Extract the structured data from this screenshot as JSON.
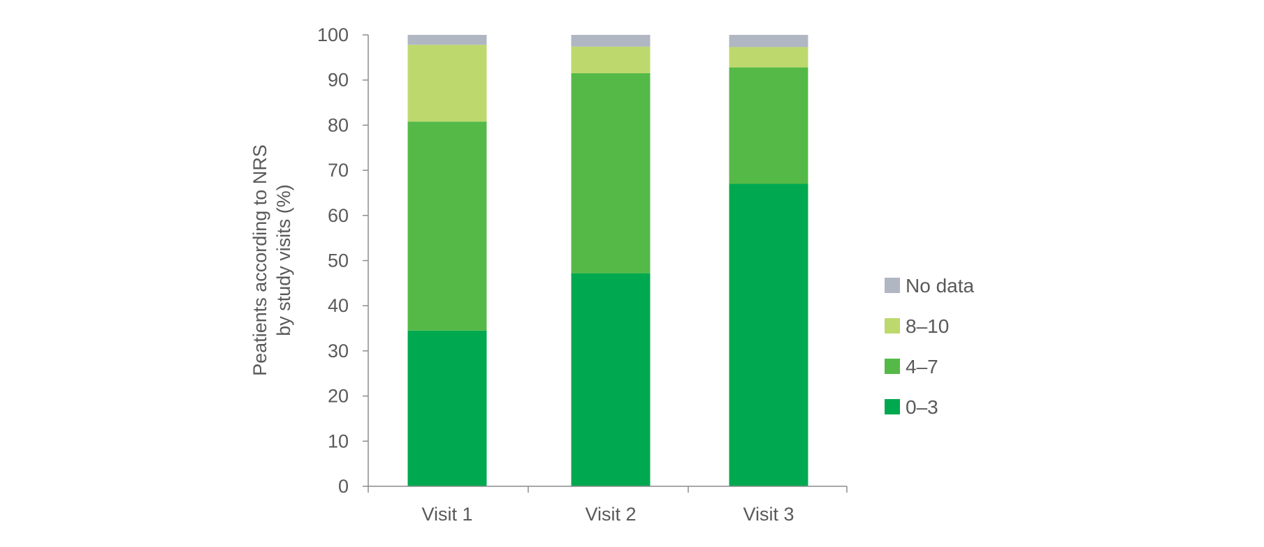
{
  "chart_data": {
    "type": "bar",
    "stacked": true,
    "title": "",
    "xlabel": "",
    "ylabel": "Peatients according to NRS by study visits (%)",
    "ylabel_lines": [
      "Peatients according to NRS",
      "by study visits (%)"
    ],
    "ylim": [
      0,
      100
    ],
    "yticks": [
      0,
      10,
      20,
      30,
      40,
      50,
      60,
      70,
      80,
      90,
      100
    ],
    "categories": [
      "Visit 1",
      "Visit 2",
      "Visit 3"
    ],
    "series": [
      {
        "name": "0–3",
        "color": "#00a94f",
        "values": [
          34.5,
          47.2,
          67.0
        ]
      },
      {
        "name": "4–7",
        "color": "#55b947",
        "values": [
          46.3,
          44.3,
          25.8
        ]
      },
      {
        "name": "8–10",
        "color": "#bdd96d",
        "values": [
          17.0,
          5.9,
          4.5
        ]
      },
      {
        "name": "No data",
        "color": "#b1b6c3",
        "values": [
          2.2,
          2.6,
          2.7
        ]
      }
    ],
    "legend": {
      "placement": "right",
      "order": [
        "No data",
        "8–10",
        "4–7",
        "0–3"
      ]
    },
    "grid": false
  }
}
